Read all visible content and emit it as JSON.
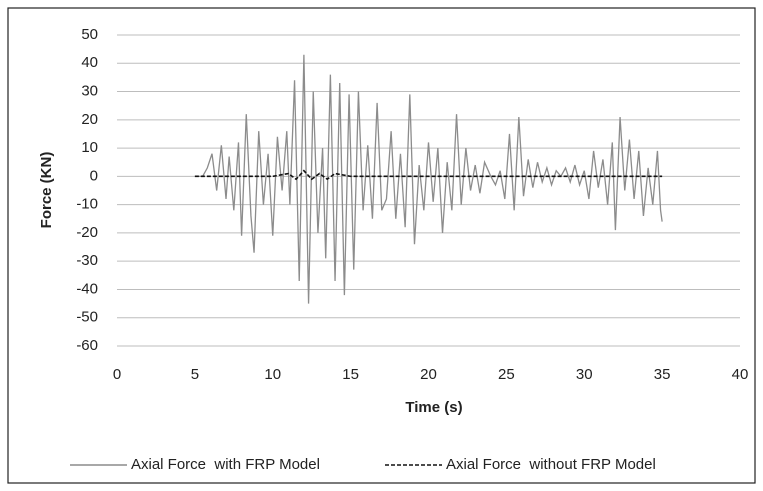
{
  "chart_data": {
    "type": "line",
    "xlabel": "Time (s)",
    "ylabel": "Force (KN)",
    "xlim": [
      0,
      40
    ],
    "xticks": [
      0,
      5,
      10,
      15,
      20,
      25,
      30,
      35,
      40
    ],
    "ylim": [
      -60,
      50
    ],
    "yticks": [
      -60,
      -50,
      -40,
      -30,
      -20,
      -10,
      0,
      10,
      20,
      30,
      40,
      50
    ],
    "grid": true,
    "legend": "bottom",
    "series": [
      {
        "name": "Axial Force  with FRP Model",
        "color": "#8c8c8c",
        "dash": false,
        "x": [
          5.0,
          5.5,
          5.8,
          6.1,
          6.4,
          6.7,
          7.0,
          7.2,
          7.5,
          7.8,
          8.0,
          8.3,
          8.6,
          8.8,
          9.1,
          9.4,
          9.7,
          10.0,
          10.3,
          10.6,
          10.9,
          11.1,
          11.4,
          11.7,
          12.0,
          12.3,
          12.6,
          12.9,
          13.2,
          13.4,
          13.7,
          14.0,
          14.3,
          14.6,
          14.9,
          15.2,
          15.5,
          15.8,
          16.1,
          16.4,
          16.7,
          17.0,
          17.3,
          17.6,
          17.9,
          18.2,
          18.5,
          18.8,
          19.1,
          19.4,
          19.7,
          20.0,
          20.3,
          20.6,
          20.9,
          21.2,
          21.5,
          21.8,
          22.1,
          22.4,
          22.7,
          23.0,
          23.3,
          23.6,
          24.0,
          24.3,
          24.6,
          24.9,
          25.2,
          25.5,
          25.8,
          26.1,
          26.4,
          26.7,
          27.0,
          27.3,
          27.6,
          27.9,
          28.2,
          28.5,
          28.8,
          29.1,
          29.4,
          29.7,
          30.0,
          30.3,
          30.6,
          30.9,
          31.2,
          31.5,
          31.8,
          32.0,
          32.3,
          32.6,
          32.9,
          33.2,
          33.5,
          33.8,
          34.1,
          34.4,
          34.7,
          34.9,
          35.0
        ],
        "values": [
          0,
          0,
          3,
          8,
          -5,
          11,
          -8,
          7,
          -12,
          12,
          -21,
          22,
          -14,
          -27,
          16,
          -10,
          8,
          -21,
          14,
          -5,
          16,
          -10,
          34,
          -37,
          43,
          -45,
          30,
          -20,
          10,
          -29,
          36,
          -37,
          33,
          -42,
          29,
          -33,
          30,
          -12,
          11,
          -15,
          26,
          -12,
          -8,
          16,
          -15,
          8,
          -18,
          29,
          -24,
          4,
          -12,
          12,
          -9,
          10,
          -20,
          5,
          -12,
          22,
          -10,
          10,
          -5,
          4,
          -6,
          5,
          0,
          -3,
          2,
          -8,
          15,
          -12,
          21,
          -7,
          6,
          -4,
          5,
          -2,
          3,
          -3,
          2,
          0,
          3,
          -2,
          4,
          -3,
          2,
          -8,
          9,
          -4,
          6,
          -10,
          12,
          -19,
          21,
          -5,
          13,
          -8,
          9,
          -14,
          3,
          -10,
          9,
          -12,
          -16
        ]
      },
      {
        "name": "Axial Force  without FRP Model",
        "color": "#111111",
        "dash": true,
        "x": [
          5,
          10,
          11,
          11.5,
          12,
          12.5,
          13,
          13.5,
          14,
          15,
          20,
          25,
          30,
          35
        ],
        "values": [
          0,
          0,
          1,
          -1,
          2,
          -1,
          1,
          -1,
          1,
          0,
          0,
          0,
          0,
          0
        ]
      }
    ]
  }
}
